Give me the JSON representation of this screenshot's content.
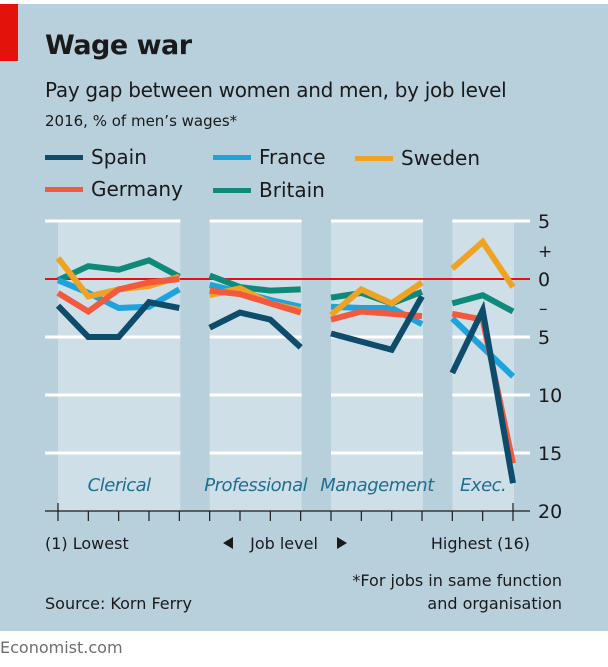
{
  "header": {
    "title": "Wage war",
    "subtitle": "Pay gap between women and men, by job level",
    "units": "2016, % of men’s wages*"
  },
  "footer": {
    "source": "Source: Korn Ferry",
    "footnote_line1": "*For jobs in same function",
    "footnote_line2": "and organisation",
    "brand": "Economist.com"
  },
  "colors": {
    "background": "#b8cfdc",
    "panel": "#cfdfe8",
    "zero_line": "#e3120b",
    "brand_red": "#e3120b"
  },
  "chart_data": {
    "type": "line",
    "title": "Wage war",
    "subtitle": "Pay gap between women and men, by job level",
    "ylabel": "2016, % of men’s wages*",
    "xlabel": "Job level",
    "x_left_label": "(1) Lowest",
    "x_right_label": "Highest (16)",
    "x_center_label": "Job level",
    "x": [
      1,
      2,
      3,
      4,
      5,
      6,
      7,
      8,
      9,
      10,
      11,
      12,
      13,
      14,
      15,
      16
    ],
    "xlim": [
      1,
      16
    ],
    "ylim": [
      -20,
      5
    ],
    "y_ticks": [
      {
        "value": 5,
        "label": "5"
      },
      {
        "value": 0,
        "label": "0"
      },
      {
        "value": -5,
        "label": "5"
      },
      {
        "value": -10,
        "label": "10"
      },
      {
        "value": -15,
        "label": "15"
      },
      {
        "value": -20,
        "label": "20"
      }
    ],
    "sign_labels": {
      "plus": "+",
      "minus": "–"
    },
    "grid": true,
    "legend_position": "top",
    "panels": [
      {
        "label": "Clerical",
        "levels": [
          1,
          5
        ]
      },
      {
        "label": "Professional",
        "levels": [
          6,
          9
        ]
      },
      {
        "label": "Management",
        "levels": [
          10,
          13
        ]
      },
      {
        "label": "Exec.",
        "levels": [
          14,
          16
        ]
      }
    ],
    "series": [
      {
        "name": "Spain",
        "color": "#0d4c6b",
        "values": [
          -2.3,
          -5.0,
          -5.0,
          -2.0,
          -2.5,
          -4.2,
          -2.9,
          -3.5,
          -5.9,
          -4.7,
          -5.4,
          -6.1,
          -1.5,
          -8.1,
          -2.7,
          -17.6
        ]
      },
      {
        "name": "France",
        "color": "#1ea3dc",
        "values": [
          -0.1,
          -1.2,
          -2.5,
          -2.4,
          -0.9,
          -0.5,
          -1.1,
          -1.8,
          -2.4,
          -2.4,
          -2.5,
          -2.5,
          -3.9,
          -3.4,
          -5.9,
          -8.4
        ]
      },
      {
        "name": "Sweden",
        "color": "#eea324",
        "values": [
          1.8,
          -1.5,
          -0.9,
          -0.6,
          0.2,
          -1.4,
          -0.8,
          -2.1,
          -2.7,
          -3.1,
          -0.9,
          -2.1,
          -0.3,
          0.9,
          3.2,
          -0.7
        ]
      },
      {
        "name": "Germany",
        "color": "#f2593d",
        "values": [
          -1.2,
          -2.8,
          -0.9,
          -0.3,
          0.0,
          -1.0,
          -1.3,
          -2.1,
          -2.9,
          -3.5,
          -2.8,
          -3.0,
          -3.2,
          -3.0,
          -3.5,
          -15.9
        ]
      },
      {
        "name": "Britain",
        "color": "#0f8a7a",
        "values": [
          -0.1,
          1.1,
          0.8,
          1.6,
          0.2,
          0.3,
          -0.7,
          -1.0,
          -0.9,
          -1.6,
          -1.2,
          -2.1,
          -1.1,
          -2.1,
          -1.4,
          -2.8
        ]
      }
    ],
    "legend": [
      {
        "name": "Spain",
        "color": "#0d4c6b"
      },
      {
        "name": "France",
        "color": "#1ea3dc"
      },
      {
        "name": "Sweden",
        "color": "#eea324"
      },
      {
        "name": "Germany",
        "color": "#f2593d"
      },
      {
        "name": "Britain",
        "color": "#0f8a7a"
      }
    ]
  }
}
